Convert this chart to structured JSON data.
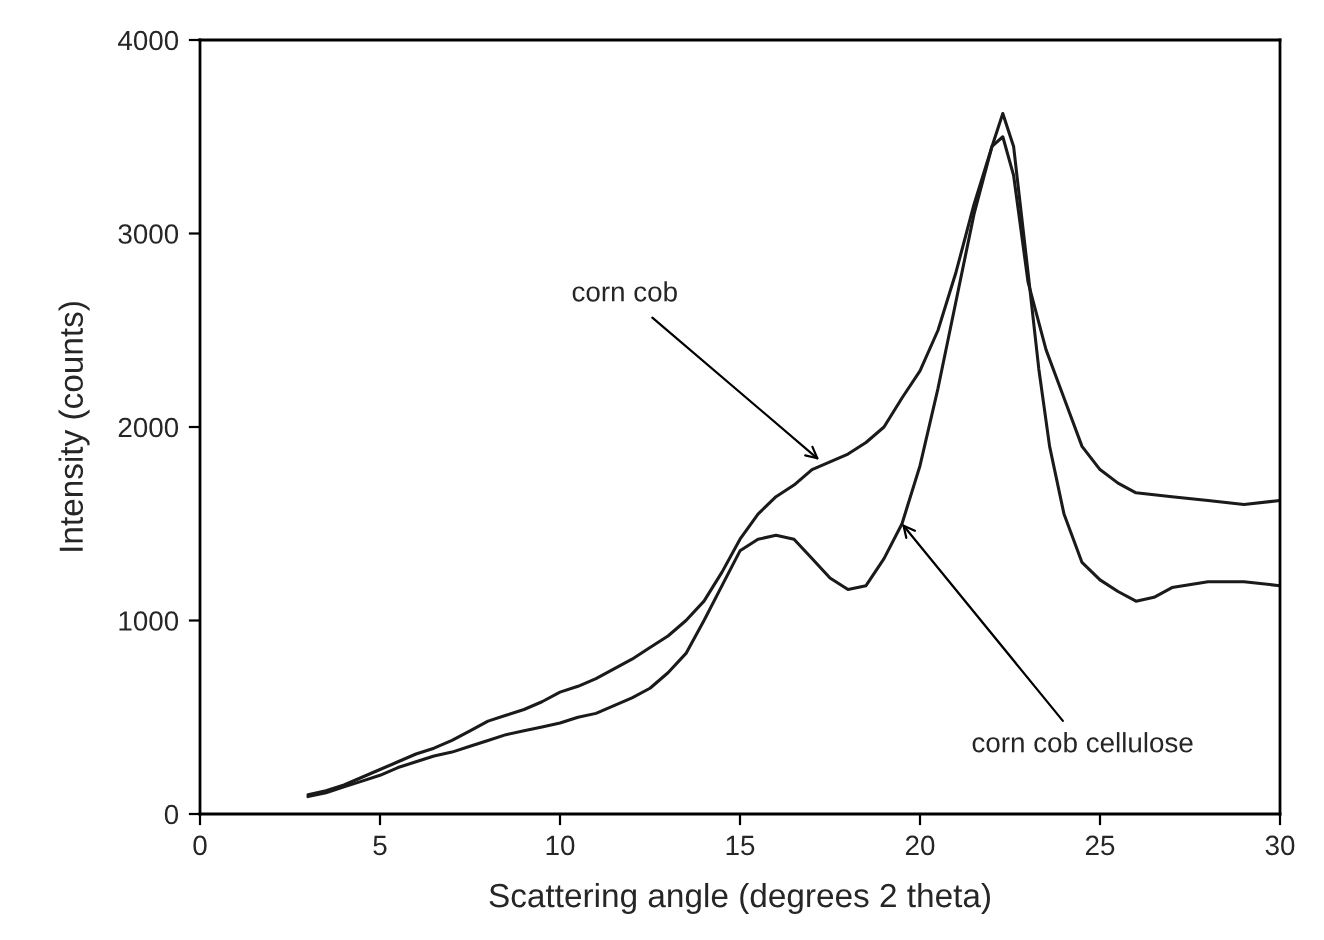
{
  "chart_data": {
    "type": "line",
    "xlabel": "Scattering angle (degrees 2 theta)",
    "ylabel": "Intensity (counts)",
    "xlim": [
      0,
      30
    ],
    "xticks": [
      0,
      5,
      10,
      15,
      20,
      25,
      30
    ],
    "ylim": [
      0,
      4000
    ],
    "yticks": [
      0,
      1000,
      2000,
      3000,
      4000
    ],
    "grid": false,
    "marker": "none",
    "line_style": "solid",
    "series": [
      {
        "color": "#1a1a1a",
        "x": [
          3,
          3.5,
          4,
          4.5,
          5,
          5.5,
          6,
          6.5,
          7,
          7.5,
          8,
          8.5,
          9,
          9.5,
          10,
          10.5,
          11,
          11.5,
          12,
          12.5,
          13,
          13.5,
          14,
          14.5,
          15,
          15.5,
          16,
          16.5,
          17,
          17.5,
          18,
          18.5,
          19,
          19.5,
          20,
          20.5,
          21,
          21.5,
          22,
          22.3,
          22.6,
          23,
          23.5,
          24,
          24.5,
          25,
          25.5,
          26,
          27,
          28,
          29,
          30
        ],
        "values": [
          100,
          120,
          150,
          190,
          230,
          270,
          310,
          340,
          380,
          430,
          480,
          510,
          540,
          580,
          630,
          660,
          700,
          750,
          800,
          860,
          920,
          1000,
          1100,
          1250,
          1420,
          1550,
          1640,
          1700,
          1780,
          1820,
          1860,
          1920,
          2000,
          2150,
          2290,
          2500,
          2800,
          3150,
          3450,
          3500,
          3300,
          2750,
          2400,
          2150,
          1900,
          1780,
          1710,
          1660,
          1640,
          1620,
          1600,
          1620
        ]
      },
      {
        "color": "#1a1a1a",
        "x": [
          3,
          3.5,
          4,
          4.5,
          5,
          5.5,
          6,
          6.5,
          7,
          7.5,
          8,
          8.5,
          9,
          9.5,
          10,
          10.5,
          11,
          11.5,
          12,
          12.5,
          13,
          13.5,
          14,
          14.5,
          15,
          15.5,
          16,
          16.5,
          17,
          17.5,
          18,
          18.5,
          19,
          19.5,
          20,
          20.5,
          21,
          21.5,
          22,
          22.3,
          22.6,
          23,
          23.3,
          23.6,
          24,
          24.5,
          25,
          25.5,
          26,
          26.5,
          27,
          28,
          29,
          30
        ],
        "values": [
          90,
          110,
          140,
          170,
          200,
          240,
          270,
          300,
          320,
          350,
          380,
          410,
          430,
          450,
          470,
          500,
          520,
          560,
          600,
          650,
          730,
          830,
          1000,
          1180,
          1360,
          1420,
          1440,
          1420,
          1320,
          1220,
          1160,
          1180,
          1320,
          1500,
          1800,
          2200,
          2650,
          3100,
          3450,
          3620,
          3450,
          2800,
          2300,
          1900,
          1550,
          1300,
          1210,
          1150,
          1100,
          1120,
          1170,
          1200,
          1200,
          1180
        ]
      }
    ],
    "annotations": [
      {
        "text": "corn cob",
        "x": 17.2,
        "y": 1830
      },
      {
        "text": "corn cob cellulose",
        "x": 19.5,
        "y": 1500
      }
    ]
  }
}
